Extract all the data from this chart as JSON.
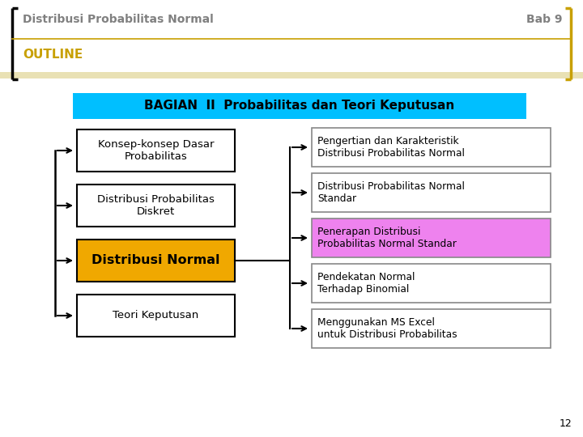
{
  "title": "Distribusi Probabilitas Normal",
  "bab": "Bab 9",
  "outline_label": "OUTLINE",
  "header_box_text": "BAGIAN  II  Probabilitas dan Teori Keputusan",
  "left_boxes": [
    {
      "text": "Konsep-konsep Dasar\nProbabilitas",
      "bg": "#ffffff",
      "bold": false
    },
    {
      "text": "Distribusi Probabilitas\nDiskret",
      "bg": "#ffffff",
      "bold": false
    },
    {
      "text": "Distribusi Normal",
      "bg": "#f0a800",
      "bold": true
    },
    {
      "text": "Teori Keputusan",
      "bg": "#ffffff",
      "bold": false
    }
  ],
  "right_boxes": [
    {
      "text": "Pengertian dan Karakteristik\nDistribusi Probabilitas Normal",
      "bg": "#ffffff"
    },
    {
      "text": "Distribusi Probabilitas Normal\nStandar",
      "bg": "#ffffff"
    },
    {
      "text": "Penerapan Distribusi\nProbabilitas Normal Standar",
      "bg": "#ee82ee"
    },
    {
      "text": "Pendekatan Normal\nTerhadap Binomial",
      "bg": "#ffffff"
    },
    {
      "text": "Menggunakan MS Excel\nuntuk Distribusi Probabilitas",
      "bg": "#ffffff"
    }
  ],
  "page_number": "12",
  "bracket_color": "#c8a000",
  "header_bg": "#00bfff",
  "outline_color": "#c8a000",
  "title_color": "#808080",
  "bab_color": "#808080",
  "bg_color": "#ffffff"
}
